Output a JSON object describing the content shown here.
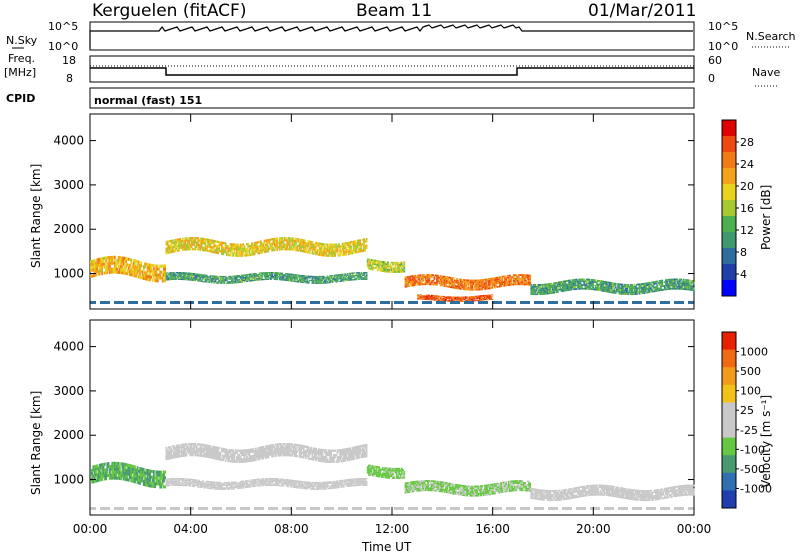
{
  "header": {
    "station": "Kerguelen (fitACF)",
    "beam": "Beam 11",
    "date": "01/Mar/2011"
  },
  "summary_panels": {
    "nsky_label": "N.Sky",
    "nsky_ticks": [
      "10^5",
      "10^0"
    ],
    "nsearch_label": "N.Search",
    "nsearch_ticks": [
      "10^5",
      "10^0"
    ],
    "freq_label_1": "Freq.",
    "freq_label_2": "[MHz]",
    "freq_ticks": [
      "18",
      "8"
    ],
    "nave_label": "Nave",
    "nave_ticks": [
      "60",
      "0"
    ],
    "cpid_label": "CPID",
    "cpid_value": "normal (fast) 151"
  },
  "chart_data": [
    {
      "type": "heatmap",
      "name": "power-panel",
      "ylabel": "Slant Range [km]",
      "ylim": [
        200,
        4600
      ],
      "yticks": [
        "4000",
        "3000",
        "2000",
        "1000"
      ],
      "colorbar_label": "Power [dB]",
      "colorbar_ticks": [
        "28",
        "24",
        "20",
        "16",
        "12",
        "8",
        "4"
      ],
      "colorbar_colors": [
        "#0000ff",
        "#1f3fa8",
        "#2e6e9e",
        "#3e9a6e",
        "#4caf50",
        "#a8c832",
        "#e8d21e",
        "#f2a21a",
        "#f07a14",
        "#ec4a10",
        "#e00000"
      ],
      "bands": [
        {
          "start": 0.0,
          "end": 3.0,
          "center": 1100,
          "width": 400,
          "level": 20
        },
        {
          "start": 3.0,
          "end": 11.0,
          "center": 1600,
          "width": 300,
          "level": 18
        },
        {
          "start": 3.0,
          "end": 11.0,
          "center": 900,
          "width": 180,
          "level": 10
        },
        {
          "start": 11.0,
          "end": 12.5,
          "center": 1200,
          "width": 250,
          "level": 16
        },
        {
          "start": 12.5,
          "end": 17.5,
          "center": 800,
          "width": 250,
          "level": 24
        },
        {
          "start": 13.0,
          "end": 16.0,
          "center": 450,
          "width": 120,
          "level": 26
        },
        {
          "start": 17.5,
          "end": 24.0,
          "center": 700,
          "width": 250,
          "level": 10
        }
      ]
    },
    {
      "type": "heatmap",
      "name": "velocity-panel",
      "ylabel": "Slant Range [km]",
      "ylim": [
        200,
        4600
      ],
      "yticks": [
        "4000",
        "3000",
        "2000",
        "1000"
      ],
      "xlabel": "Time UT",
      "xticks": [
        "00:00",
        "04:00",
        "08:00",
        "12:00",
        "16:00",
        "20:00",
        "00:00"
      ],
      "colorbar_label": "Velocity [m s⁻¹]",
      "colorbar_ticks": [
        "1000",
        "500",
        "100",
        "25",
        "-25",
        "-100",
        "-500",
        "-1000"
      ],
      "colorbar_colors": [
        "#1f3faf",
        "#3070b0",
        "#4a9a70",
        "#66c840",
        "#c8c8c8",
        "#c8c8c8",
        "#f2c21a",
        "#f29a1a",
        "#f06a14",
        "#e62000"
      ],
      "bands": [
        {
          "start": 0.0,
          "end": 3.0,
          "center": 1100,
          "width": 400,
          "level": -450
        },
        {
          "start": 3.0,
          "end": 11.0,
          "center": 1600,
          "width": 300,
          "level": 0
        },
        {
          "start": 3.0,
          "end": 11.0,
          "center": 900,
          "width": 180,
          "level": 0
        },
        {
          "start": 11.0,
          "end": 12.5,
          "center": 1200,
          "width": 250,
          "level": -300
        },
        {
          "start": 12.5,
          "end": 17.5,
          "center": 800,
          "width": 250,
          "level": -250
        },
        {
          "start": 17.5,
          "end": 24.0,
          "center": 700,
          "width": 250,
          "level": 0
        }
      ]
    }
  ]
}
